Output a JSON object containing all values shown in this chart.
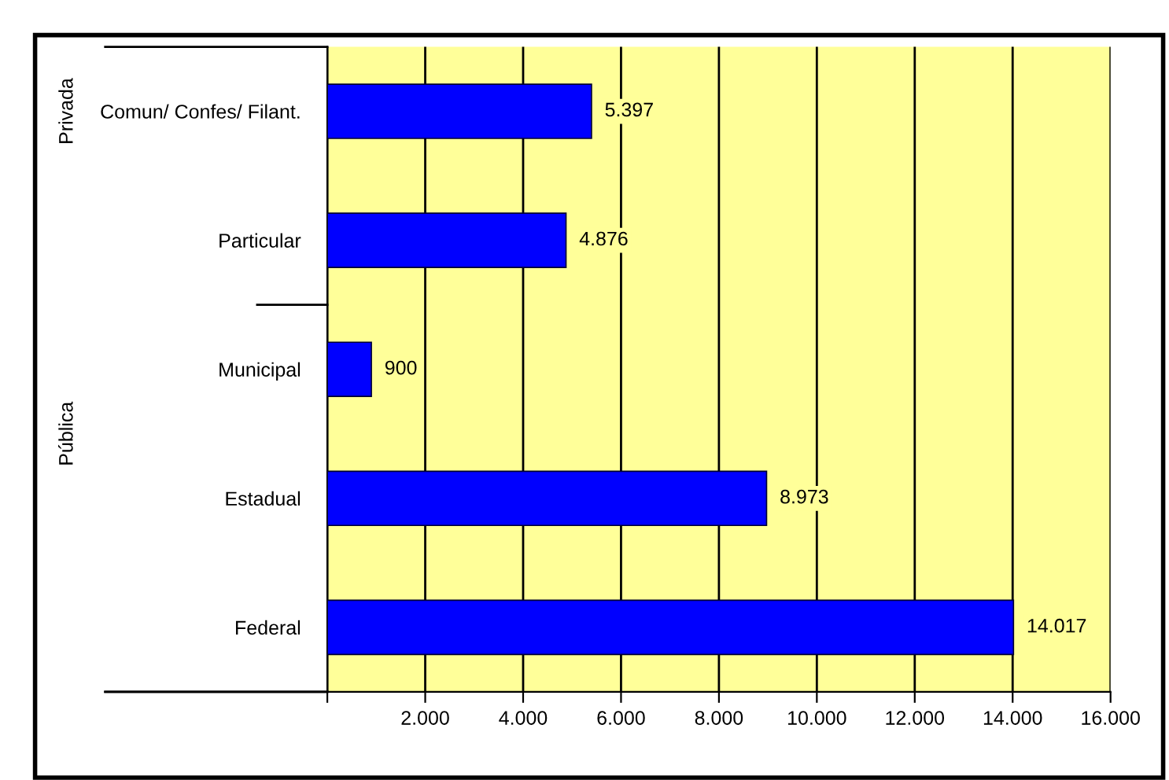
{
  "chart_data": {
    "type": "bar",
    "orientation": "horizontal",
    "categories": [
      "Comun/ Confes/ Filant.",
      "Particular",
      "Municipal",
      "Estadual",
      "Federal"
    ],
    "values": [
      5397,
      4876,
      900,
      8973,
      14017
    ],
    "value_labels": [
      "5.397",
      "4.876",
      "900",
      "8.973",
      "14.017"
    ],
    "color": "#0000ff",
    "xlim": [
      0,
      16000
    ],
    "xticks": [
      {
        "value": 0,
        "label": null
      },
      {
        "value": 2000,
        "label": "2.000"
      },
      {
        "value": 4000,
        "label": "4.000"
      },
      {
        "value": 6000,
        "label": "6.000"
      },
      {
        "value": 8000,
        "label": "8.000"
      },
      {
        "value": 10000,
        "label": "10.000"
      },
      {
        "value": 12000,
        "label": "12.000"
      },
      {
        "value": 14000,
        "label": "14.000"
      },
      {
        "value": 16000,
        "label": "16.000"
      }
    ],
    "annotations": [
      "Privada",
      "Pública"
    ],
    "grid": "x"
  }
}
